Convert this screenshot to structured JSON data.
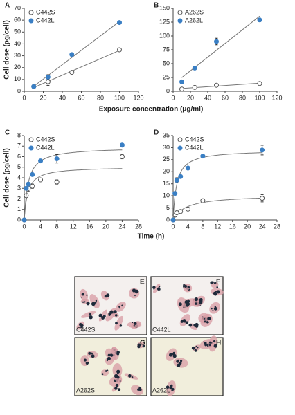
{
  "chart_data": [
    {
      "type": "scatter",
      "panel": "A",
      "fit": "linear",
      "legend": "upper left",
      "ylabel": "Cell dose (pg/cell)",
      "xlabel": "Exposure concentration (μg/ml)",
      "xlim": [
        0,
        120
      ],
      "xticks": [
        0,
        20,
        40,
        60,
        80,
        100,
        120
      ],
      "ylim": [
        0,
        70
      ],
      "yticks": [
        0,
        10,
        20,
        30,
        40,
        50,
        60,
        70
      ],
      "series": [
        {
          "name": "C442S",
          "color": "#555555",
          "marker": "open",
          "x": [
            10,
            25,
            50,
            100
          ],
          "values": [
            4,
            8,
            16,
            35
          ],
          "errors": [
            null,
            3,
            null,
            1
          ]
        },
        {
          "name": "C442L",
          "color": "#3a7fc4",
          "marker": "filled",
          "x": [
            10,
            25,
            50,
            100
          ],
          "values": [
            4,
            12,
            31,
            58
          ],
          "errors": [
            null,
            2,
            null,
            null
          ]
        }
      ]
    },
    {
      "type": "scatter",
      "panel": "B",
      "fit": "linear",
      "legend": "upper left",
      "xlim": [
        0,
        120
      ],
      "xticks": [
        0,
        20,
        40,
        60,
        80,
        100,
        120
      ],
      "ylim": [
        0,
        150
      ],
      "yticks": [
        0,
        25,
        50,
        75,
        100,
        125,
        150
      ],
      "series": [
        {
          "name": "A262S",
          "color": "#555555",
          "marker": "open",
          "x": [
            10,
            25,
            50,
            100
          ],
          "values": [
            4,
            7,
            11,
            14
          ],
          "errors": [
            null,
            null,
            2,
            2
          ]
        },
        {
          "name": "A262L",
          "color": "#3a7fc4",
          "marker": "filled",
          "x": [
            10,
            25,
            50,
            100
          ],
          "values": [
            17,
            42,
            90,
            129
          ],
          "errors": [
            null,
            null,
            6,
            3
          ]
        }
      ]
    },
    {
      "type": "scatter",
      "panel": "C",
      "fit": "hyperbolic",
      "legend": "upper left",
      "ylabel": "Cell dose (pg/cell)",
      "xlabel": "Time (h)",
      "xlim": [
        0,
        28
      ],
      "xticks": [
        0,
        4,
        8,
        12,
        16,
        20,
        24,
        28
      ],
      "ylim": [
        0,
        8
      ],
      "yticks": [
        0,
        1,
        2,
        3,
        4,
        5,
        6,
        7,
        8
      ],
      "series": [
        {
          "name": "C442S",
          "color": "#555555",
          "marker": "open",
          "x": [
            0,
            0.5,
            1,
            2,
            4,
            8,
            24
          ],
          "values": [
            0,
            2.3,
            3.0,
            3.2,
            3.8,
            3.6,
            6.0
          ],
          "errors": [
            null,
            null,
            0.3,
            0.2,
            null,
            0.2,
            0.2
          ]
        },
        {
          "name": "C442L",
          "color": "#3a7fc4",
          "marker": "filled",
          "x": [
            0,
            0.5,
            1,
            2,
            4,
            8,
            24
          ],
          "values": [
            0,
            3.0,
            3.4,
            4.3,
            5.6,
            5.8,
            7.1
          ],
          "errors": [
            null,
            null,
            null,
            null,
            null,
            0.4,
            null
          ]
        }
      ]
    },
    {
      "type": "scatter",
      "panel": "D",
      "fit": "hyperbolic",
      "legend": "upper left",
      "xlim": [
        0,
        28
      ],
      "xticks": [
        0,
        4,
        8,
        12,
        16,
        20,
        24,
        28
      ],
      "ylim": [
        0,
        35
      ],
      "yticks": [
        0,
        5,
        10,
        15,
        20,
        25,
        30,
        35
      ],
      "series": [
        {
          "name": "C442S",
          "color": "#555555",
          "marker": "open",
          "x": [
            0,
            0.5,
            1,
            2,
            4,
            8,
            24
          ],
          "values": [
            0,
            2,
            3,
            3.5,
            4.5,
            8,
            9
          ],
          "errors": [
            null,
            null,
            null,
            null,
            null,
            null,
            1.5
          ]
        },
        {
          "name": "C442L",
          "color": "#3a7fc4",
          "marker": "filled",
          "x": [
            0,
            0.5,
            1,
            2,
            4,
            8,
            24
          ],
          "values": [
            0,
            11,
            16.5,
            18,
            21.5,
            26.5,
            29
          ],
          "errors": [
            null,
            null,
            1,
            null,
            null,
            null,
            2
          ]
        }
      ]
    }
  ],
  "micrographs": [
    {
      "panel": "E",
      "label": "C442S"
    },
    {
      "panel": "F",
      "label": "C442L"
    },
    {
      "panel": "G",
      "label": "A262S"
    },
    {
      "panel": "H",
      "label": "A262L"
    }
  ]
}
